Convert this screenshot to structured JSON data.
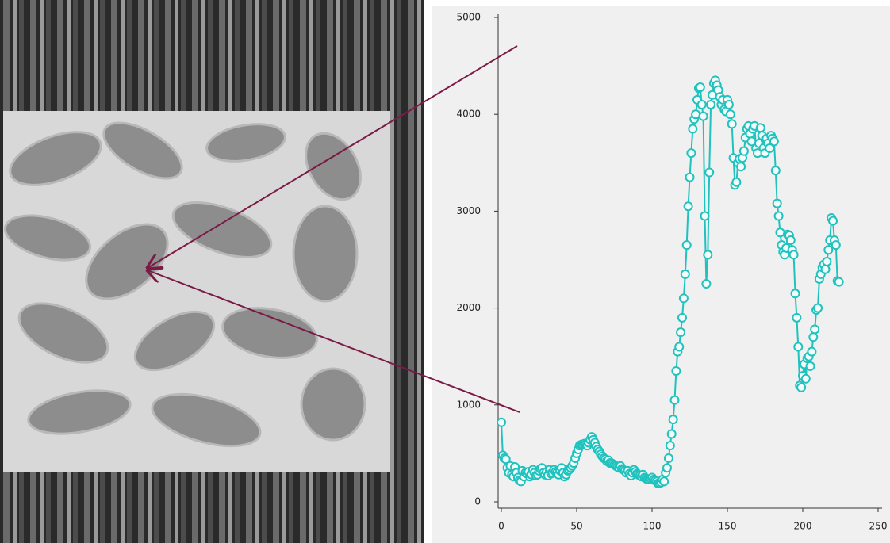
{
  "chart_data": {
    "type": "line",
    "color": "#20c2be",
    "xlim": [
      0,
      250
    ],
    "xticks": [
      0,
      50,
      100,
      150,
      200,
      250
    ],
    "ylim": [
      0,
      5000
    ],
    "yticks": [
      0,
      1000,
      2000,
      3000,
      4000,
      5000
    ],
    "x": [
      0,
      1,
      2,
      3,
      4,
      5,
      6,
      7,
      8,
      9,
      10,
      11,
      12,
      13,
      14,
      15,
      16,
      17,
      18,
      19,
      20,
      21,
      22,
      23,
      24,
      25,
      26,
      27,
      28,
      29,
      30,
      31,
      32,
      33,
      34,
      35,
      36,
      37,
      38,
      39,
      40,
      41,
      42,
      43,
      44,
      45,
      46,
      47,
      48,
      49,
      50,
      51,
      52,
      53,
      54,
      55,
      56,
      57,
      58,
      59,
      60,
      61,
      62,
      63,
      64,
      65,
      66,
      67,
      68,
      69,
      70,
      71,
      72,
      73,
      74,
      75,
      76,
      77,
      78,
      79,
      80,
      81,
      82,
      83,
      84,
      85,
      86,
      87,
      88,
      89,
      90,
      91,
      92,
      93,
      94,
      95,
      96,
      97,
      98,
      99,
      100,
      101,
      102,
      103,
      104,
      105,
      106,
      107,
      108,
      109,
      110,
      111,
      112,
      113,
      114,
      115,
      116,
      117,
      118,
      119,
      120,
      121,
      122,
      123,
      124,
      125,
      126,
      127,
      128,
      129,
      130,
      131,
      132,
      133,
      134,
      135,
      136,
      137,
      138,
      139,
      140,
      141,
      142,
      143,
      144,
      145,
      146,
      147,
      148,
      149,
      150,
      151,
      152,
      153,
      154,
      155,
      156,
      157,
      158,
      159,
      160,
      161,
      162,
      163,
      164,
      165,
      166,
      167,
      168,
      169,
      170,
      171,
      172,
      173,
      174,
      175,
      176,
      177,
      178,
      179,
      180,
      181,
      182,
      183,
      184,
      185,
      186,
      187,
      188,
      189,
      190,
      191,
      192,
      193,
      194,
      195,
      196,
      197,
      198,
      199,
      200,
      201,
      202,
      203,
      204,
      205,
      206,
      207,
      208,
      209,
      210,
      211,
      212,
      213,
      214,
      215,
      216,
      217,
      218,
      219,
      220,
      221,
      222,
      223,
      224
    ],
    "values": [
      820,
      480,
      450,
      440,
      350,
      300,
      370,
      280,
      260,
      360,
      300,
      250,
      220,
      210,
      320,
      260,
      300,
      290,
      310,
      260,
      280,
      330,
      300,
      270,
      280,
      320,
      340,
      350,
      300,
      280,
      310,
      270,
      330,
      290,
      300,
      330,
      310,
      300,
      280,
      320,
      350,
      300,
      260,
      280,
      320,
      330,
      350,
      370,
      400,
      450,
      500,
      540,
      580,
      590,
      590,
      600,
      590,
      580,
      610,
      640,
      670,
      640,
      610,
      570,
      540,
      520,
      490,
      470,
      450,
      440,
      420,
      430,
      400,
      400,
      390,
      380,
      370,
      360,
      350,
      370,
      340,
      330,
      320,
      300,
      320,
      290,
      270,
      300,
      330,
      310,
      290,
      280,
      270,
      260,
      280,
      250,
      240,
      230,
      230,
      240,
      250,
      230,
      220,
      210,
      190,
      190,
      200,
      230,
      210,
      300,
      350,
      450,
      580,
      700,
      850,
      1050,
      1350,
      1550,
      1600,
      1750,
      1900,
      2100,
      2350,
      2650,
      3050,
      3350,
      3600,
      3850,
      3950,
      4000,
      4150,
      4270,
      4280,
      4100,
      3980,
      2950,
      2250,
      2550,
      3400,
      4100,
      4200,
      4320,
      4350,
      4300,
      4250,
      4180,
      4100,
      4150,
      4050,
      4030,
      4150,
      4100,
      4000,
      3900,
      3550,
      3270,
      3300,
      3500,
      3540,
      3460,
      3550,
      3620,
      3760,
      3850,
      3880,
      3800,
      3720,
      3850,
      3880,
      3650,
      3600,
      3700,
      3860,
      3780,
      3650,
      3600,
      3750,
      3700,
      3650,
      3780,
      3750,
      3720,
      3420,
      3080,
      2950,
      2780,
      2650,
      2580,
      2550,
      2620,
      2760,
      2750,
      2700,
      2600,
      2550,
      2150,
      1900,
      1600,
      1200,
      1180,
      1300,
      1420,
      1270,
      1480,
      1500,
      1400,
      1550,
      1700,
      1780,
      1980,
      2000,
      2300,
      2350,
      2420,
      2450,
      2400,
      2480,
      2600,
      2700,
      2930,
      2900,
      2700,
      2650,
      2280,
      2270
    ]
  }
}
